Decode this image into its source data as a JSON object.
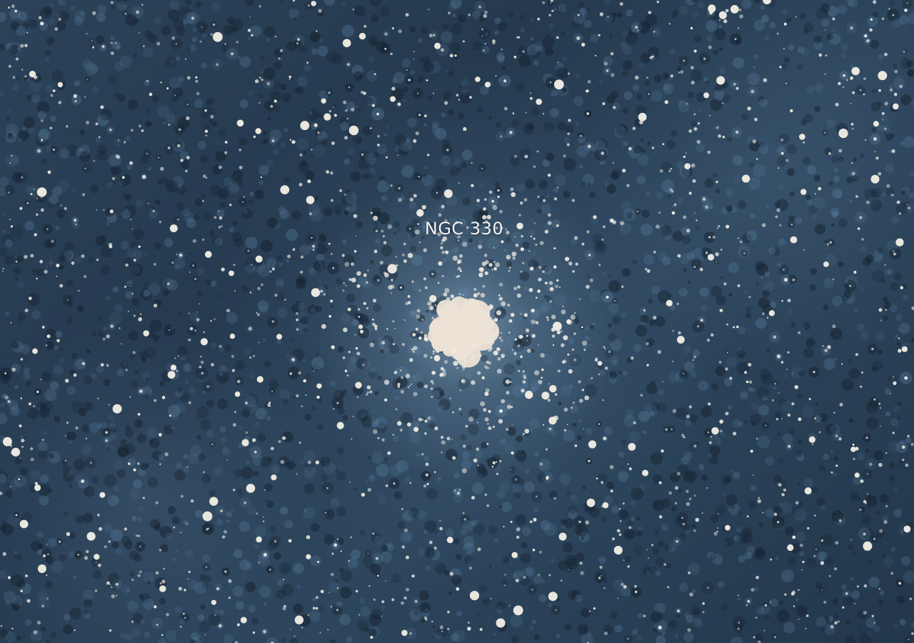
{
  "image": {
    "subject": "star-cluster",
    "label": "NGC 330",
    "palette": {
      "background": "#2b4258",
      "noise_dark": "#15222f",
      "noise_light": "#5f86a6",
      "star": "#f3efe6",
      "core": "#ece3d6"
    }
  }
}
